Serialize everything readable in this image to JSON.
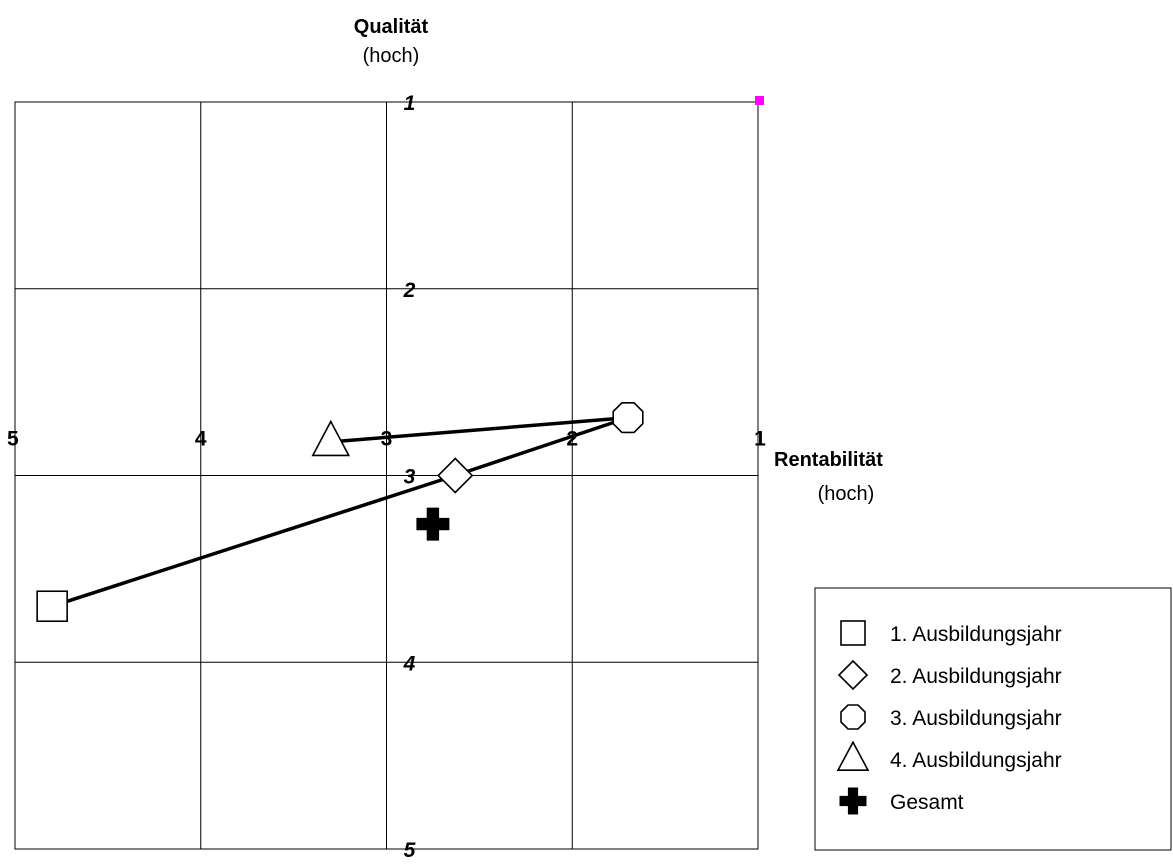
{
  "chart_data": {
    "type": "scatter",
    "title": "",
    "y_axis": {
      "label": "Qualität",
      "sublabel": "(hoch)",
      "ticks": [
        1,
        2,
        3,
        4,
        5
      ],
      "ylim": [
        5,
        1
      ],
      "inverted": true
    },
    "x_axis": {
      "label": "Rentabilität",
      "sublabel": "(hoch)",
      "ticks": [
        5,
        4,
        3,
        2,
        1
      ],
      "xlim": [
        5,
        1
      ],
      "inverted": true
    },
    "grid": true,
    "series": [
      {
        "name": "1. Ausbildungsjahr",
        "marker": "square",
        "x": 4.8,
        "y": 3.7
      },
      {
        "name": "2. Ausbildungsjahr",
        "marker": "diamond",
        "x": 2.63,
        "y": 3.0
      },
      {
        "name": "3. Ausbildungsjahr",
        "marker": "octagon",
        "x": 1.7,
        "y": 2.69
      },
      {
        "name": "4. Ausbildungsjahr",
        "marker": "triangle",
        "x": 3.3,
        "y": 2.82
      },
      {
        "name": "Gesamt",
        "marker": "cross",
        "x": 2.75,
        "y": 3.26
      }
    ],
    "connecting_line": [
      "1. Ausbildungsjahr",
      "2. Ausbildungsjahr",
      "3. Ausbildungsjahr",
      "4. Ausbildungsjahr"
    ],
    "corner_marker": {
      "x": 1,
      "y": 1,
      "color": "#ff00ff"
    },
    "legend": {
      "placement": "bottom-right",
      "entries": [
        "1. Ausbildungsjahr",
        "2. Ausbildungsjahr",
        "3. Ausbildungsjahr",
        "4. Ausbildungsjahr",
        "Gesamt"
      ]
    }
  }
}
